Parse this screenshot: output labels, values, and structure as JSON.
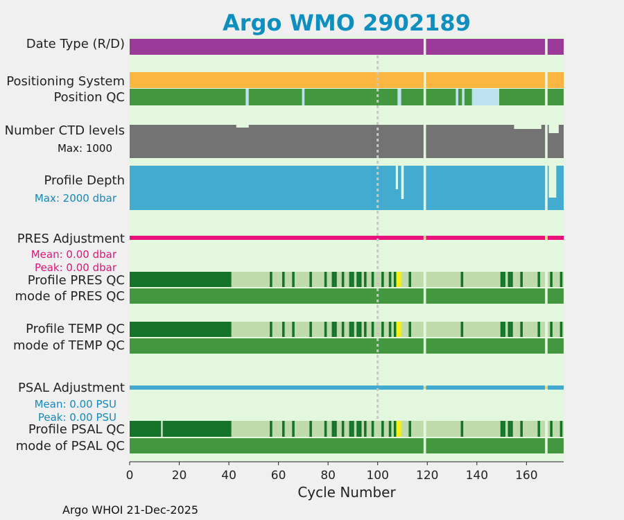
{
  "chart_data": {
    "type": "timeline",
    "title": "Argo WMO 2902189",
    "xlabel": "Cycle Number",
    "xlim": [
      0,
      175
    ],
    "xticks": [
      "0",
      "20",
      "40",
      "60",
      "80",
      "100",
      "120",
      "140",
      "160"
    ],
    "xtick_values": [
      0,
      20,
      40,
      60,
      80,
      100,
      120,
      140,
      160
    ],
    "missing_cycles": [
      119,
      168
    ],
    "reference_line_cycle": 100,
    "rows": {
      "data_type": {
        "label": "Date Type (R/D)"
      },
      "positioning": {
        "label": "Positioning System"
      },
      "position_qc": {
        "label": "Position QC",
        "flagged_ranges": [
          [
            46.8,
            48
          ],
          [
            69.5,
            70.5
          ],
          [
            108,
            109.5
          ],
          [
            131.5,
            132.5
          ],
          [
            134,
            135
          ],
          [
            138,
            149
          ]
        ]
      },
      "ctd_levels": {
        "label": "Number CTD levels",
        "sublabel": "Max: 1000"
      },
      "profile_depth": {
        "label": "Profile Depth",
        "sublabel": "Max: 2000 dbar"
      },
      "pres_adjustment": {
        "label": "PRES Adjustment",
        "mean": "Mean: 0.00 dbar",
        "peak": "Peak: 0.00 dbar"
      },
      "profile_pres_qc": {
        "label": "Profile PRES QC"
      },
      "mode_pres_qc": {
        "label": "mode of PRES QC"
      },
      "profile_temp_qc": {
        "label": "Profile TEMP QC"
      },
      "mode_temp_qc": {
        "label": "mode of TEMP QC"
      },
      "psal_adjustment": {
        "label": "PSAL Adjustment",
        "mean": "Mean: 0.00 PSU",
        "peak": "Peak: 0.00 PSU"
      },
      "profile_psal_qc": {
        "label": "Profile PSAL QC"
      },
      "mode_psal_qc": {
        "label": "mode of PSAL QC"
      }
    },
    "profile_qc_dark_until": 41,
    "profile_qc_dark_cycles": [
      57,
      62,
      66,
      73,
      79,
      82,
      83,
      86,
      89,
      90,
      92,
      93,
      95,
      98,
      102,
      105,
      107,
      113,
      134,
      150,
      151,
      153,
      154,
      158,
      165,
      170,
      174
    ],
    "profile_qc_yellow_cycles": [
      108,
      109
    ],
    "psal_qc_break_cycle": 13,
    "colors": {
      "title": "#0f8fbf",
      "panel_bg": "#e4f8e0",
      "data_type": "#9b3a98",
      "positioning": "#fbb541",
      "qc_good": "#43973f",
      "qc_flag": "#bde1ee",
      "ctd": "#737373",
      "depth": "#43abd0",
      "pres_adj": "#e8127a",
      "psal_adj": "#43abd0",
      "adj_zero": "#f2d46a",
      "profile_qc_dark": "#15742a",
      "profile_qc_light": "#bfdbab",
      "profile_qc_yellow": "#f5ee1d",
      "ref_line": "#c8c8c8",
      "pres_text": "#e8127a",
      "psal_text": "#1488c0",
      "depth_text": "#1488c0"
    }
  },
  "footer": "Argo WHOI 21-Dec-2025"
}
